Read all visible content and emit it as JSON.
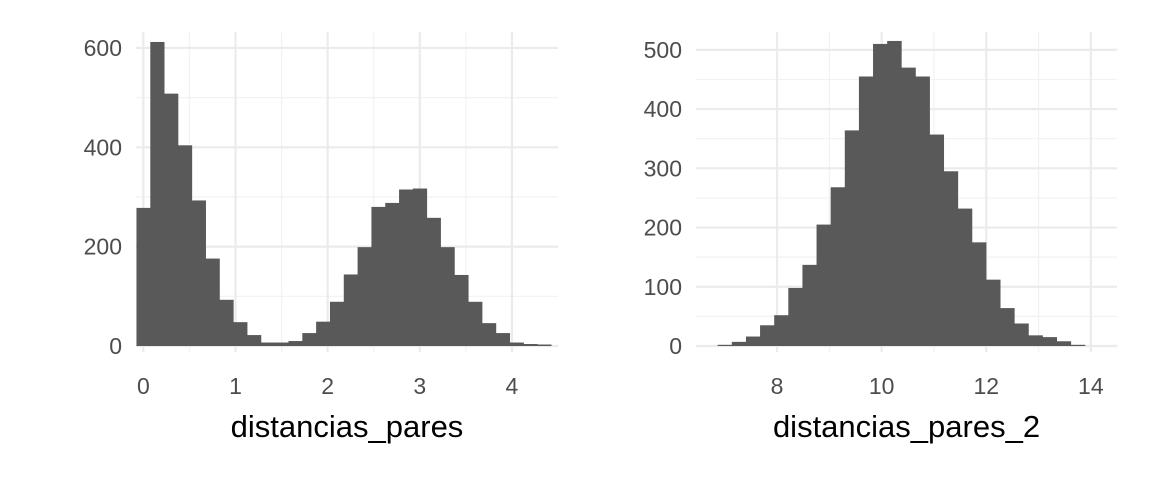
{
  "colors": {
    "bar": "#595959",
    "grid_major": "#ebebeb",
    "grid_minor": "#f2f2f2",
    "tick_text": "#4d4d4d",
    "title_text": "#000000",
    "background": "#ffffff"
  },
  "chart_data": [
    {
      "type": "bar",
      "histogram": true,
      "title": "",
      "xlabel": "distancias_pares",
      "ylabel": "",
      "xlim": [
        -0.08,
        4.5
      ],
      "ylim": [
        0,
        620
      ],
      "xticks": [
        0,
        1,
        2,
        3,
        4
      ],
      "yticks": [
        0,
        200,
        400,
        600
      ],
      "grid": true,
      "bin_width": 0.15,
      "bin_start": -0.075,
      "values": [
        278,
        612,
        508,
        404,
        293,
        176,
        93,
        48,
        22,
        7,
        7,
        10,
        26,
        49,
        89,
        144,
        199,
        280,
        288,
        315,
        317,
        258,
        199,
        143,
        89,
        46,
        26,
        7,
        4,
        3
      ]
    },
    {
      "type": "bar",
      "histogram": true,
      "title": "",
      "xlabel": "distancias_pares_2",
      "ylabel": "",
      "xlim": [
        6.45,
        14.5
      ],
      "ylim": [
        0,
        520
      ],
      "xticks": [
        8,
        10,
        12,
        14
      ],
      "yticks": [
        0,
        100,
        200,
        300,
        400,
        500
      ],
      "grid": true,
      "bin_width": 0.27,
      "bin_start": 6.865,
      "values": [
        2,
        7,
        16,
        35,
        52,
        98,
        137,
        205,
        268,
        364,
        455,
        510,
        515,
        470,
        455,
        357,
        295,
        232,
        175,
        112,
        64,
        38,
        18,
        15,
        8,
        2
      ]
    }
  ]
}
